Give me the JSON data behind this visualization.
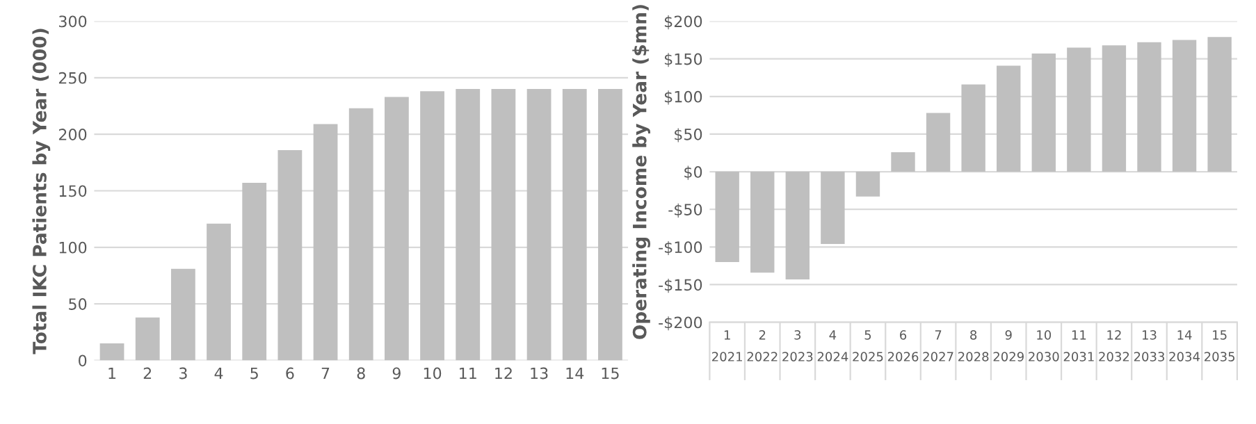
{
  "chart_data": [
    {
      "type": "bar",
      "ylabel": "Total IKC Patients by Year (000)",
      "categories": [
        "1",
        "2",
        "3",
        "4",
        "5",
        "6",
        "7",
        "8",
        "9",
        "10",
        "11",
        "12",
        "13",
        "14",
        "15"
      ],
      "values": [
        15,
        38,
        81,
        121,
        157,
        186,
        209,
        223,
        233,
        238,
        240,
        240,
        240,
        240,
        240
      ],
      "color": "#bfbfbf",
      "ylim": [
        0,
        300
      ],
      "yticks": [
        0,
        50,
        100,
        150,
        200,
        250,
        300
      ],
      "grid": "y"
    },
    {
      "type": "bar",
      "ylabel": "Operating Income by Year ($mn)",
      "categories": [
        "1\n2021",
        "2\n2022",
        "3\n2023",
        "4\n2024",
        "5\n2025",
        "6\n2026",
        "7\n2027",
        "8\n2028",
        "9\n2029",
        "10\n2030",
        "11\n2031",
        "12\n2032",
        "13\n2033",
        "14\n2034",
        "15\n2035"
      ],
      "values": [
        -120,
        -134,
        -143,
        -96,
        -33,
        26,
        78,
        116,
        141,
        157,
        165,
        168,
        172,
        175,
        179
      ],
      "color": "#bfbfbf",
      "ylim": [
        -200,
        200
      ],
      "yticks": [
        {
          "value": -200,
          "label": "-$200"
        },
        {
          "value": -150,
          "label": "-$150"
        },
        {
          "value": -100,
          "label": "-$100"
        },
        {
          "value": -50,
          "label": "-$50"
        },
        {
          "value": 0,
          "label": "$0"
        },
        {
          "value": 50,
          "label": "$50"
        },
        {
          "value": 100,
          "label": "$100"
        },
        {
          "value": 150,
          "label": "$150"
        },
        {
          "value": 200,
          "label": "$200"
        }
      ],
      "grid": "y"
    }
  ]
}
